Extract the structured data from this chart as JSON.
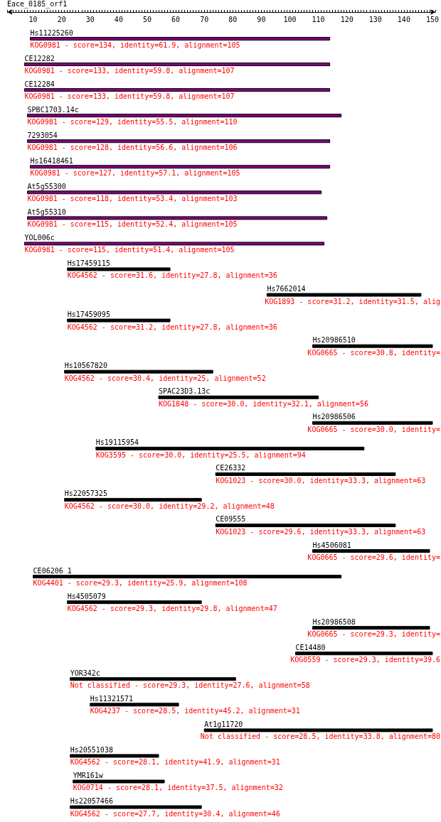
{
  "chart_data": {
    "type": "bar",
    "orientation": "horizontal",
    "title": "Eace_0185_orf1",
    "categories": [
      "Hs11225260",
      "CE12282",
      "CE12284",
      "SPBC1703.14c",
      "7293054",
      "Hs16418461",
      "At5g55300",
      "At5g55310",
      "YOL006c",
      "Hs17459115",
      "Hs7662014",
      "Hs17459095",
      "Hs20986510",
      "Hs10567820",
      "SPAC23D3.13c",
      "Hs20986506",
      "Hs19115954",
      "CE26332",
      "Hs22057325",
      "CE09555",
      "Hs4506081",
      "CE06206_1",
      "Hs4505079",
      "Hs20986508",
      "CE14480",
      "YOR342c",
      "Hs11321571",
      "At1g11720",
      "Hs20551038",
      "YMR161w",
      "Hs22057466"
    ],
    "base": [
      9,
      7,
      7,
      8,
      8,
      9,
      8,
      8,
      7,
      22,
      92,
      22,
      108,
      21,
      54,
      108,
      32,
      74,
      21,
      74,
      108,
      10,
      22,
      108,
      102,
      23,
      30,
      70,
      23,
      24,
      23
    ],
    "values": [
      105,
      107,
      107,
      110,
      106,
      105,
      103,
      105,
      105,
      36,
      54,
      36,
      42,
      52,
      56,
      42,
      94,
      63,
      48,
      63,
      41,
      108,
      47,
      41,
      48,
      58,
      31,
      80,
      31,
      32,
      46
    ],
    "colors": [
      "#800080",
      "#800080",
      "#800080",
      "#800080",
      "#800080",
      "#800080",
      "#800080",
      "#800080",
      "#800080",
      "#000000",
      "#000000",
      "#000000",
      "#000000",
      "#000000",
      "#000000",
      "#000000",
      "#000000",
      "#000000",
      "#000000",
      "#000000",
      "#000000",
      "#000000",
      "#000000",
      "#000000",
      "#000000",
      "#000000",
      "#000000",
      "#000000",
      "#000000",
      "#000000",
      "#000000"
    ],
    "xlim": [
      1,
      151
    ],
    "xticks": [
      {
        "value": 1,
        "label": null
      },
      {
        "value": 2,
        "label": null
      },
      {
        "value": 3,
        "label": null
      },
      {
        "value": 4,
        "label": null
      },
      {
        "value": 5,
        "label": null
      },
      {
        "value": 6,
        "label": null
      },
      {
        "value": 7,
        "label": null
      },
      {
        "value": 8,
        "label": null
      },
      {
        "value": 9,
        "label": null
      },
      10,
      {
        "value": 11,
        "label": null
      },
      {
        "value": 12,
        "label": null
      },
      {
        "value": 13,
        "label": null
      },
      {
        "value": 14,
        "label": null
      },
      {
        "value": 15,
        "label": null
      },
      {
        "value": 16,
        "label": null
      },
      {
        "value": 17,
        "label": null
      },
      {
        "value": 18,
        "label": null
      },
      {
        "value": 19,
        "label": null
      },
      20,
      {
        "value": 21,
        "label": null
      },
      {
        "value": 22,
        "label": null
      },
      {
        "value": 23,
        "label": null
      },
      {
        "value": 24,
        "label": null
      },
      {
        "value": 25,
        "label": null
      },
      {
        "value": 26,
        "label": null
      },
      {
        "value": 27,
        "label": null
      },
      {
        "value": 28,
        "label": null
      },
      {
        "value": 29,
        "label": null
      },
      30,
      {
        "value": 31,
        "label": null
      },
      {
        "value": 32,
        "label": null
      },
      {
        "value": 33,
        "label": null
      },
      {
        "value": 34,
        "label": null
      },
      {
        "value": 35,
        "label": null
      },
      {
        "value": 36,
        "label": null
      },
      {
        "value": 37,
        "label": null
      },
      {
        "value": 38,
        "label": null
      },
      {
        "value": 39,
        "label": null
      },
      40,
      {
        "value": 41,
        "label": null
      },
      {
        "value": 42,
        "label": null
      },
      {
        "value": 43,
        "label": null
      },
      {
        "value": 44,
        "label": null
      },
      {
        "value": 45,
        "label": null
      },
      {
        "value": 46,
        "label": null
      },
      {
        "value": 47,
        "label": null
      },
      {
        "value": 48,
        "label": null
      },
      {
        "value": 49,
        "label": null
      },
      50,
      {
        "value": 51,
        "label": null
      },
      {
        "value": 52,
        "label": null
      },
      {
        "value": 53,
        "label": null
      },
      {
        "value": 54,
        "label": null
      },
      {
        "value": 55,
        "label": null
      },
      {
        "value": 56,
        "label": null
      },
      {
        "value": 57,
        "label": null
      },
      {
        "value": 58,
        "label": null
      },
      {
        "value": 59,
        "label": null
      },
      60,
      {
        "value": 61,
        "label": null
      },
      {
        "value": 62,
        "label": null
      },
      {
        "value": 63,
        "label": null
      },
      {
        "value": 64,
        "label": null
      },
      {
        "value": 65,
        "label": null
      },
      {
        "value": 66,
        "label": null
      },
      {
        "value": 67,
        "label": null
      },
      {
        "value": 68,
        "label": null
      },
      {
        "value": 69,
        "label": null
      },
      70,
      {
        "value": 71,
        "label": null
      },
      {
        "value": 72,
        "label": null
      },
      {
        "value": 73,
        "label": null
      },
      {
        "value": 74,
        "label": null
      },
      {
        "value": 75,
        "label": null
      },
      {
        "value": 76,
        "label": null
      },
      {
        "value": 77,
        "label": null
      },
      {
        "value": 78,
        "label": null
      },
      {
        "value": 79,
        "label": null
      },
      80,
      {
        "value": 81,
        "label": null
      },
      {
        "value": 82,
        "label": null
      },
      {
        "value": 83,
        "label": null
      },
      {
        "value": 84,
        "label": null
      },
      {
        "value": 85,
        "label": null
      },
      {
        "value": 86,
        "label": null
      },
      {
        "value": 87,
        "label": null
      },
      {
        "value": 88,
        "label": null
      },
      {
        "value": 89,
        "label": null
      },
      90,
      {
        "value": 91,
        "label": null
      },
      {
        "value": 92,
        "label": null
      },
      {
        "value": 93,
        "label": null
      },
      {
        "value": 94,
        "label": null
      },
      {
        "value": 95,
        "label": null
      },
      {
        "value": 96,
        "label": null
      },
      {
        "value": 97,
        "label": null
      },
      {
        "value": 98,
        "label": null
      },
      {
        "value": 99,
        "label": null
      },
      100,
      {
        "value": 101,
        "label": null
      },
      {
        "value": 102,
        "label": null
      },
      {
        "value": 103,
        "label": null
      },
      {
        "value": 104,
        "label": null
      },
      {
        "value": 105,
        "label": null
      },
      {
        "value": 106,
        "label": null
      },
      {
        "value": 107,
        "label": null
      },
      {
        "value": 108,
        "label": null
      },
      {
        "value": 109,
        "label": null
      },
      110,
      {
        "value": 111,
        "label": null
      },
      {
        "value": 112,
        "label": null
      },
      {
        "value": 113,
        "label": null
      },
      {
        "value": 114,
        "label": null
      },
      {
        "value": 115,
        "label": null
      },
      {
        "value": 116,
        "label": null
      },
      {
        "value": 117,
        "label": null
      },
      {
        "value": 118,
        "label": null
      },
      {
        "value": 119,
        "label": null
      },
      120,
      {
        "value": 121,
        "label": null
      },
      {
        "value": 122,
        "label": null
      },
      {
        "value": 123,
        "label": null
      },
      {
        "value": 124,
        "label": null
      },
      {
        "value": 125,
        "label": null
      },
      {
        "value": 126,
        "label": null
      },
      {
        "value": 127,
        "label": null
      },
      {
        "value": 128,
        "label": null
      },
      {
        "value": 129,
        "label": null
      },
      130,
      {
        "value": 131,
        "label": null
      },
      {
        "value": 132,
        "label": null
      },
      {
        "value": 133,
        "label": null
      },
      {
        "value": 134,
        "label": null
      },
      {
        "value": 135,
        "label": null
      },
      {
        "value": 136,
        "label": null
      },
      {
        "value": 137,
        "label": null
      },
      {
        "value": 138,
        "label": null
      },
      {
        "value": 139,
        "label": null
      },
      140,
      {
        "value": 141,
        "label": null
      },
      {
        "value": 142,
        "label": null
      },
      {
        "value": 143,
        "label": null
      },
      {
        "value": 144,
        "label": null
      },
      {
        "value": 145,
        "label": null
      },
      {
        "value": 146,
        "label": null
      },
      {
        "value": 147,
        "label": null
      },
      {
        "value": 148,
        "label": null
      },
      {
        "value": 149,
        "label": null
      },
      150,
      {
        "value": 151,
        "label": null
      }
    ],
    "annotations": [
      "KOG0981 - score=134, identity=61.9, alignment=105",
      "KOG0981 - score=133, identity=59.8, alignment=107",
      "KOG0981 - score=133, identity=59.8, alignment=107",
      "KOG0981 - score=129, identity=55.5, alignment=110",
      "KOG0981 - score=128, identity=56.6, alignment=106",
      "KOG0981 - score=127, identity=57.1, alignment=105",
      "KOG0981 - score=118, identity=53.4, alignment=103",
      "KOG0981 - score=115, identity=52.4, alignment=105",
      "KOG0981 - score=115, identity=51.4, alignment=105",
      "KOG4562 - score=31.6, identity=27.8, alignment=36",
      "KOG1893 - score=31.2, identity=31.5, alig",
      "KOG4562 - score=31.2, identity=27.8, alignment=36",
      "KOG0665 - score=30.8, identity=",
      "KOG4562 - score=30.4, identity=25, alignment=52",
      "KOG1848 - score=30.0, identity=32.1, alignment=56",
      "KOG0665 - score=30.0, identity=",
      "KOG3595 - score=30.0, identity=25.5, alignment=94",
      "KOG1023 - score=30.0, identity=33.3, alignment=63",
      "KOG4562 - score=30.0, identity=29.2, alignment=48",
      "KOG1023 - score=29.6, identity=33.3, alignment=63",
      "KOG0665 - score=29.6, identity=",
      "KOG4401 - score=29.3, identity=25.9, alignment=108",
      "KOG4562 - score=29.3, identity=29.8, alignment=47",
      "KOG0665 - score=29.3, identity=",
      "KOG0559 - score=29.3, identity=39.6",
      "Not classified - score=29.3, identity=27.6, alignment=58",
      "KOG4237 - score=28.5, identity=45.2, alignment=31",
      "Not classified - score=28.5, identity=33.8, alignment=80",
      "KOG4562 - score=28.1, identity=41.9, alignment=31",
      "KOG0714 - score=28.1, identity=37.5, alignment=32",
      "KOG4562 - score=27.7, identity=30.4, alignment=46"
    ]
  }
}
